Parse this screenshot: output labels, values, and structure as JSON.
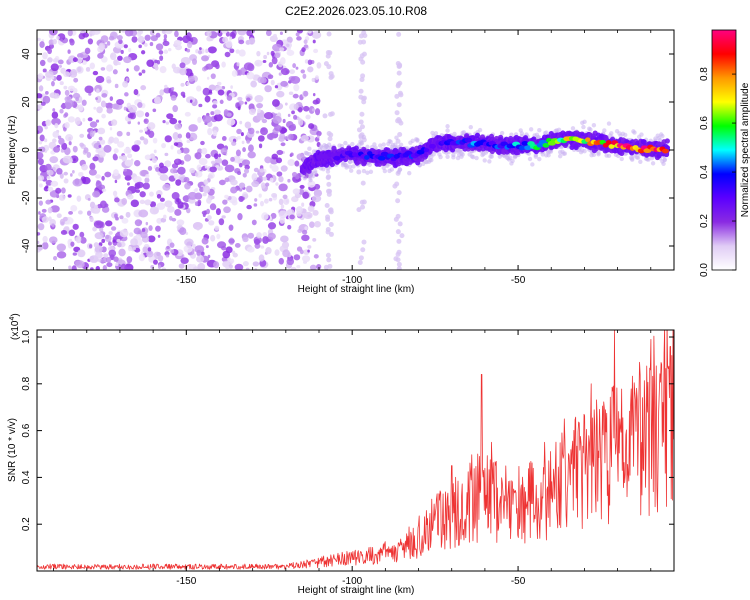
{
  "title": "C2E2.2026.023.05.10.R08",
  "chart_data": [
    {
      "type": "heatmap",
      "xlabel": "Height of straight line (km)",
      "ylabel": "Frequency (Hz)",
      "xlim": [
        -195,
        -3
      ],
      "ylim": [
        -50,
        50
      ],
      "x_ticks": [
        -150,
        -100,
        -50
      ],
      "y_ticks": [
        -40,
        -20,
        0,
        20,
        40
      ],
      "colorbar": {
        "label": "Normalized spectral amplitude",
        "range": [
          0,
          0.98
        ],
        "ticks": [
          0.0,
          0.2,
          0.4,
          0.6,
          0.8
        ],
        "stops": [
          "#ffffff",
          "#e0ccf5",
          "#8a2be2",
          "#5b00ff",
          "#0000ff",
          "#00ffff",
          "#00ff00",
          "#ffff00",
          "#ff9900",
          "#ff0000",
          "#ff0080"
        ]
      },
      "noise_region": {
        "x_range": [
          -195,
          -110
        ],
        "y_range": [
          -50,
          50
        ],
        "amplitude": [
          0.05,
          0.2
        ]
      },
      "signal_band": [
        {
          "x": -115,
          "y": -8,
          "amplitude": 0.18
        },
        {
          "x": -110,
          "y": -3,
          "amplitude": 0.22
        },
        {
          "x": -100,
          "y": -2,
          "amplitude": 0.35
        },
        {
          "x": -90,
          "y": -3,
          "amplitude": 0.4
        },
        {
          "x": -80,
          "y": -2,
          "amplitude": 0.4
        },
        {
          "x": -75,
          "y": 3,
          "amplitude": 0.35
        },
        {
          "x": -65,
          "y": 3,
          "amplitude": 0.45
        },
        {
          "x": -55,
          "y": 2,
          "amplitude": 0.4
        },
        {
          "x": -45,
          "y": 2,
          "amplitude": 0.55
        },
        {
          "x": -35,
          "y": 5,
          "amplitude": 0.7
        },
        {
          "x": -25,
          "y": 3,
          "amplitude": 0.8
        },
        {
          "x": -15,
          "y": 1,
          "amplitude": 0.95
        },
        {
          "x": -5,
          "y": 0,
          "amplitude": 0.95
        }
      ]
    },
    {
      "type": "line",
      "xlabel": "Height of straight line (km)",
      "ylabel": "SNR (10 * v/v)",
      "y_multiplier": "(x10",
      "y_multiplier_exp": "4",
      "xlim": [
        -195,
        -3
      ],
      "ylim": [
        0,
        1.03
      ],
      "x_ticks": [
        -150,
        -100,
        -50
      ],
      "y_ticks": [
        0.2,
        0.4,
        0.6,
        0.8,
        1.0
      ],
      "series": [
        {
          "color": "#ee3333",
          "envelope": [
            {
              "x": -195,
              "y": 0.02
            },
            {
              "x": -120,
              "y": 0.02
            },
            {
              "x": -105,
              "y": 0.05
            },
            {
              "x": -95,
              "y": 0.07
            },
            {
              "x": -85,
              "y": 0.1
            },
            {
              "x": -75,
              "y": 0.22
            },
            {
              "x": -65,
              "y": 0.33
            },
            {
              "x": -60,
              "y": 0.35
            },
            {
              "x": -55,
              "y": 0.3
            },
            {
              "x": -45,
              "y": 0.32
            },
            {
              "x": -35,
              "y": 0.42
            },
            {
              "x": -25,
              "y": 0.5
            },
            {
              "x": -15,
              "y": 0.6
            },
            {
              "x": -5,
              "y": 0.75
            }
          ],
          "peaks": [
            {
              "x": -103,
              "y": 0.08
            },
            {
              "x": -86,
              "y": 0.12
            },
            {
              "x": -70,
              "y": 0.45
            },
            {
              "x": -61,
              "y": 0.84
            },
            {
              "x": -58,
              "y": 0.55
            },
            {
              "x": -42,
              "y": 0.55
            },
            {
              "x": -36,
              "y": 0.65
            },
            {
              "x": -28,
              "y": 0.8
            },
            {
              "x": -21,
              "y": 1.03
            },
            {
              "x": -10,
              "y": 0.99
            },
            {
              "x": -6,
              "y": 0.93
            },
            {
              "x": -4,
              "y": 0.96
            }
          ]
        }
      ]
    }
  ]
}
